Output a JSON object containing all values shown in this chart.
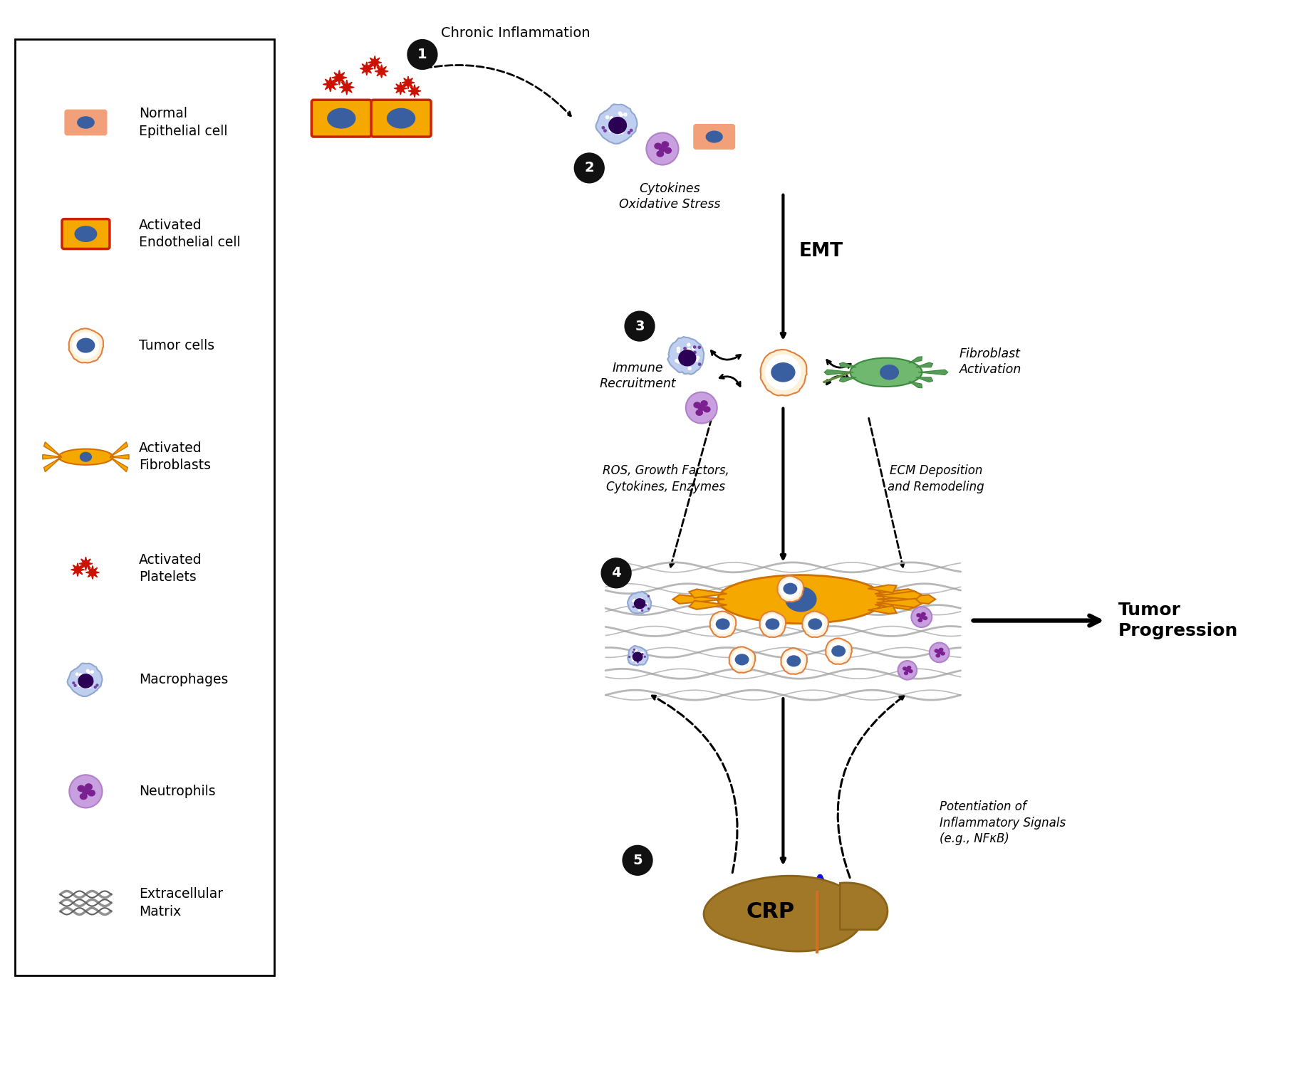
{
  "background_color": "#ffffff",
  "colors": {
    "normal_epi_fill": "#F2A07A",
    "activated_endo_fill": "#F5A800",
    "activated_endo_border": "#CC2200",
    "nucleus_blue": "#3A5FA0",
    "tumor_border": "#E08040",
    "platelet_red": "#CC1100",
    "macro_fill": "#C0CFF0",
    "macro_nucleus": "#2B0055",
    "neutro_fill": "#C8A0E0",
    "neutro_nucleus": "#7B2090",
    "ecm_color": "#909090",
    "green_fibro_fill": "#70B870",
    "green_fibro_border": "#3A8A3A",
    "orange_fibro_fill": "#F5A800",
    "orange_fibro_border": "#D07000",
    "liver_fill": "#A07828",
    "liver_border": "#8B6318",
    "liver_lobe": "#C09040",
    "step_fill": "#111111",
    "step_text": "#ffffff",
    "black": "#000000",
    "blue_arrow": "#1010EE"
  },
  "legend_labels": [
    "Normal\nEpithelial cell",
    "Activated\nEndothelial cell",
    "Tumor cells",
    "Activated\nFibroblasts",
    "Activated\nPlatelets",
    "Macrophages",
    "Neutrophils",
    "Extracellular\nMatrix"
  ],
  "texts": {
    "chronic_inflammation": "Chronic Inflammation",
    "cytokines": "Cytokines\nOxidative Stress",
    "emt": "EMT",
    "immune_recruitment": "Immune\nRecruitment",
    "fibroblast_activation": "Fibroblast\nActivation",
    "ros": "ROS, Growth Factors,\nCytokines, Enzymes",
    "ecm_deposition": "ECM Deposition\nand Remodeling",
    "tumor_progression": "Tumor\nProgression",
    "crp": "CRP",
    "potentiation": "Potentiation of\nInflammatory Signals\n(e.g., NFκB)"
  }
}
